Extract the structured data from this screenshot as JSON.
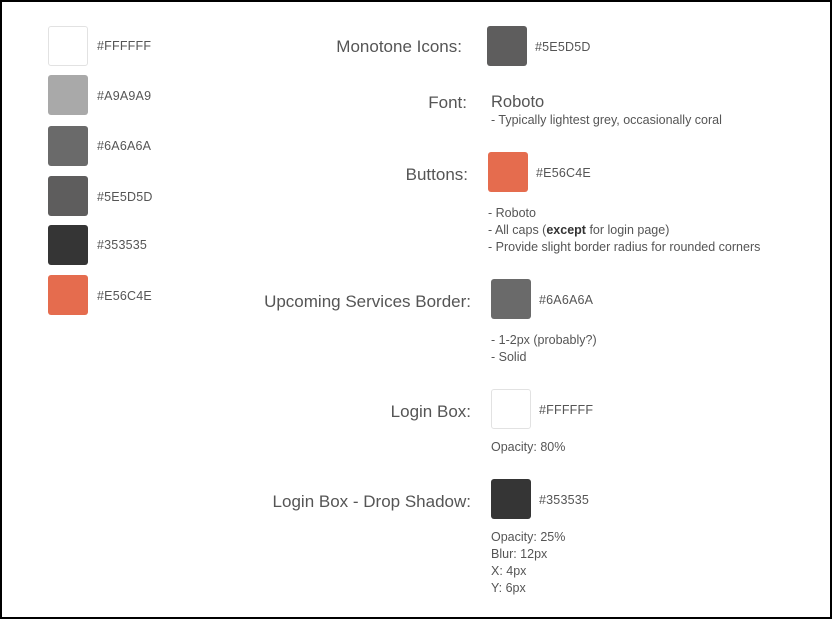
{
  "palette": [
    {
      "hex": "#FFFFFF",
      "color": "#FFFFFF"
    },
    {
      "hex": "#A9A9A9",
      "color": "#A9A9A9"
    },
    {
      "hex": "#6A6A6A",
      "color": "#6A6A6A"
    },
    {
      "hex": "#5E5D5D",
      "color": "#5E5D5D"
    },
    {
      "hex": "#353535",
      "color": "#353535"
    },
    {
      "hex": "#E56C4E",
      "color": "#E56C4E"
    }
  ],
  "monotone_icons": {
    "label": "Monotone Icons:",
    "hex": "#5E5D5D",
    "color": "#5E5D5D"
  },
  "font": {
    "label": "Font:",
    "name": "Roboto",
    "note": "- Typically lightest grey, occasionally coral"
  },
  "buttons": {
    "label": "Buttons:",
    "hex": "#E56C4E",
    "color": "#E56C4E",
    "note1": "- Roboto",
    "note2_prefix": "- All caps (",
    "note2_bold": "except",
    "note2_suffix": " for login page)",
    "note3": "- Provide slight border radius for rounded corners"
  },
  "upcoming_services_border": {
    "label": "Upcoming Services Border:",
    "hex": "#6A6A6A",
    "color": "#6A6A6A",
    "note1": "- 1-2px (probably?)",
    "note2": "- Solid"
  },
  "login_box": {
    "label": "Login Box:",
    "hex": "#FFFFFF",
    "color": "#FFFFFF",
    "note": "Opacity: 80%"
  },
  "login_box_shadow": {
    "label": "Login Box - Drop Shadow:",
    "hex": "#353535",
    "color": "#353535",
    "note1": "Opacity: 25%",
    "note2": "Blur: 12px",
    "note3": "X: 4px",
    "note4": "Y: 6px"
  }
}
